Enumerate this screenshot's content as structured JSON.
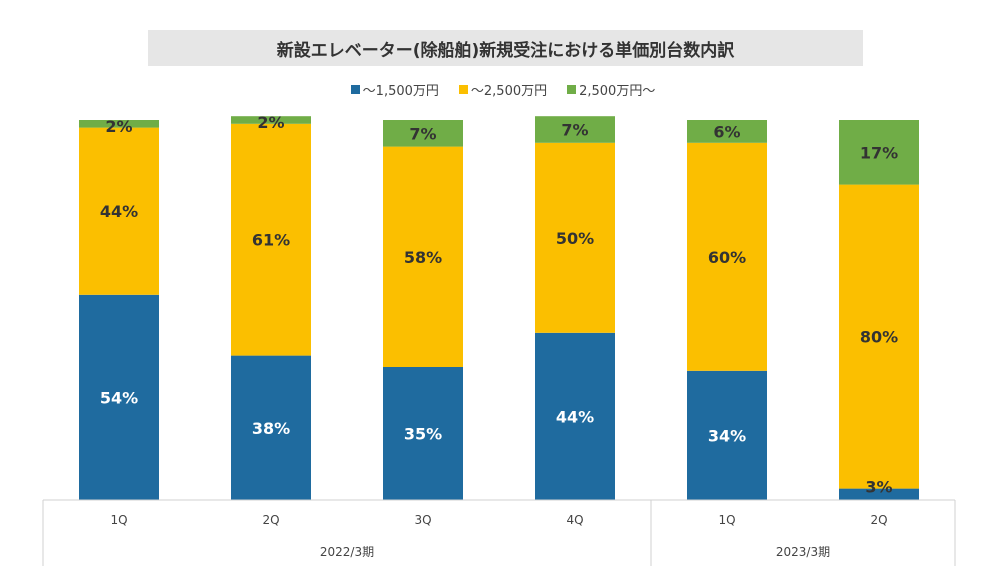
{
  "title": "新設エレベーター(除船舶)新規受注における単価別台数内訳",
  "legend": [
    {
      "label": "～1,500万円",
      "color": "#1f6b9f"
    },
    {
      "label": "～2,500万円",
      "color": "#fbbf00"
    },
    {
      "label": "2,500万円～",
      "color": "#70ad47"
    }
  ],
  "chart_data": {
    "type": "bar",
    "stacked": true,
    "categories": [
      "1Q",
      "2Q",
      "3Q",
      "4Q",
      "1Q",
      "2Q"
    ],
    "groups": [
      {
        "label": "2022/3期",
        "categories": [
          0,
          1,
          2,
          3
        ]
      },
      {
        "label": "2023/3期",
        "categories": [
          4,
          5
        ]
      }
    ],
    "series": [
      {
        "name": "～1,500万円",
        "color": "#1f6b9f",
        "label_color": "#ffffff",
        "values": [
          54,
          38,
          35,
          44,
          34,
          3
        ],
        "labels": [
          "54%",
          "38%",
          "35%",
          "44%",
          "34%",
          "3%"
        ]
      },
      {
        "name": "～2,500万円",
        "color": "#fbbf00",
        "label_color": "#333333",
        "values": [
          44,
          61,
          58,
          50,
          60,
          80
        ],
        "labels": [
          "44%",
          "61%",
          "58%",
          "50%",
          "60%",
          "80%"
        ]
      },
      {
        "name": "2,500万円～",
        "color": "#70ad47",
        "label_color": "#333333",
        "values": [
          2,
          2,
          7,
          7,
          6,
          17
        ],
        "labels": [
          "2%",
          "2%",
          "7%",
          "7%",
          "6%",
          "17%"
        ]
      }
    ],
    "ylim": [
      0,
      100
    ]
  }
}
